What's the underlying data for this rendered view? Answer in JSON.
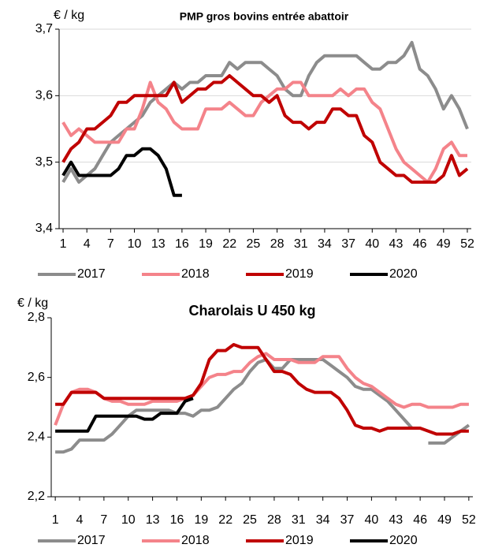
{
  "chart_data": [
    {
      "type": "line",
      "title": "PMP gros bovins entrée abattoir",
      "y_label": "€ / kg",
      "x": [
        1,
        2,
        3,
        4,
        5,
        6,
        7,
        8,
        9,
        10,
        11,
        12,
        13,
        14,
        15,
        16,
        17,
        18,
        19,
        20,
        21,
        22,
        23,
        24,
        25,
        26,
        27,
        28,
        29,
        30,
        31,
        32,
        33,
        34,
        35,
        36,
        37,
        38,
        39,
        40,
        41,
        42,
        43,
        44,
        45,
        46,
        47,
        48,
        49,
        50,
        51,
        52
      ],
      "xlim": [
        0.5,
        52.5
      ],
      "xticks": [
        1,
        4,
        7,
        10,
        13,
        16,
        19,
        22,
        25,
        28,
        31,
        34,
        37,
        40,
        43,
        46,
        49,
        52
      ],
      "ylim": [
        3.4,
        3.7
      ],
      "yticks": [
        {
          "value": 3.4,
          "label": "3,4"
        },
        {
          "value": 3.5,
          "label": "3,5"
        },
        {
          "value": 3.6,
          "label": "3,6"
        },
        {
          "value": 3.7,
          "label": "3,7"
        }
      ],
      "grid": true,
      "legend": "bottom",
      "series": [
        {
          "name": "2017",
          "color": "#8c8c8c",
          "values": [
            3.47,
            3.49,
            3.47,
            3.48,
            3.49,
            3.51,
            3.53,
            3.54,
            3.55,
            3.56,
            3.57,
            3.59,
            3.6,
            3.61,
            3.62,
            3.61,
            3.62,
            3.62,
            3.63,
            3.63,
            3.63,
            3.65,
            3.64,
            3.65,
            3.65,
            3.65,
            3.64,
            3.63,
            3.61,
            3.6,
            3.6,
            3.63,
            3.65,
            3.66,
            3.66,
            3.66,
            3.66,
            3.66,
            3.65,
            3.64,
            3.64,
            3.65,
            3.65,
            3.66,
            3.68,
            3.64,
            3.63,
            3.61,
            3.58,
            3.6,
            3.58,
            3.55
          ]
        },
        {
          "name": "2018",
          "color": "#f4838a",
          "values": [
            3.56,
            3.54,
            3.55,
            3.54,
            3.53,
            3.53,
            3.53,
            3.53,
            3.55,
            3.55,
            3.58,
            3.62,
            3.59,
            3.58,
            3.56,
            3.55,
            3.55,
            3.55,
            3.58,
            3.58,
            3.58,
            3.59,
            3.58,
            3.57,
            3.57,
            3.59,
            3.6,
            3.61,
            3.61,
            3.62,
            3.62,
            3.6,
            3.6,
            3.6,
            3.6,
            3.61,
            3.6,
            3.61,
            3.61,
            3.59,
            3.58,
            3.55,
            3.52,
            3.5,
            3.49,
            3.48,
            3.47,
            3.49,
            3.52,
            3.53,
            3.51,
            3.51
          ]
        },
        {
          "name": "2019",
          "color": "#c00000",
          "values": [
            3.5,
            3.52,
            3.53,
            3.55,
            3.55,
            3.56,
            3.57,
            3.59,
            3.59,
            3.6,
            3.6,
            3.6,
            3.6,
            3.6,
            3.62,
            3.59,
            3.6,
            3.61,
            3.61,
            3.62,
            3.62,
            3.63,
            3.62,
            3.61,
            3.6,
            3.6,
            3.59,
            3.6,
            3.57,
            3.56,
            3.56,
            3.55,
            3.56,
            3.56,
            3.58,
            3.58,
            3.57,
            3.57,
            3.54,
            3.53,
            3.5,
            3.49,
            3.48,
            3.48,
            3.47,
            3.47,
            3.47,
            3.47,
            3.48,
            3.51,
            3.48,
            3.49
          ]
        },
        {
          "name": "2020",
          "color": "#000000",
          "values": [
            3.48,
            3.5,
            3.48,
            3.48,
            3.48,
            3.48,
            3.48,
            3.49,
            3.51,
            3.51,
            3.52,
            3.52,
            3.51,
            3.49,
            3.45,
            3.45,
            null,
            null,
            null,
            null,
            null,
            null,
            null,
            null,
            null,
            null,
            null,
            null,
            null,
            null,
            null,
            null,
            null,
            null,
            null,
            null,
            null,
            null,
            null,
            null,
            null,
            null,
            null,
            null,
            null,
            null,
            null,
            null,
            null,
            null,
            null,
            null
          ]
        }
      ]
    },
    {
      "type": "line",
      "title": "Charolais U 450 kg",
      "y_label": "€ / kg",
      "x": [
        1,
        2,
        3,
        4,
        5,
        6,
        7,
        8,
        9,
        10,
        11,
        12,
        13,
        14,
        15,
        16,
        17,
        18,
        19,
        20,
        21,
        22,
        23,
        24,
        25,
        26,
        27,
        28,
        29,
        30,
        31,
        32,
        33,
        34,
        35,
        36,
        37,
        38,
        39,
        40,
        41,
        42,
        43,
        44,
        45,
        46,
        47,
        48,
        49,
        50,
        51,
        52
      ],
      "xlim": [
        0.5,
        52.5
      ],
      "xticks": [
        1,
        4,
        7,
        10,
        13,
        16,
        19,
        22,
        25,
        28,
        31,
        34,
        37,
        40,
        43,
        46,
        49,
        52
      ],
      "ylim": [
        2.2,
        2.8
      ],
      "yticks": [
        {
          "value": 2.2,
          "label": "2,2"
        },
        {
          "value": 2.4,
          "label": "2,4"
        },
        {
          "value": 2.6,
          "label": "2,6"
        },
        {
          "value": 2.8,
          "label": "2,8"
        }
      ],
      "grid": false,
      "legend": "bottom",
      "series": [
        {
          "name": "2017",
          "color": "#8c8c8c",
          "values": [
            2.35,
            2.35,
            2.36,
            2.39,
            2.39,
            2.39,
            2.39,
            2.41,
            2.44,
            2.47,
            2.49,
            2.49,
            2.49,
            2.49,
            2.49,
            2.48,
            2.48,
            2.47,
            2.49,
            2.49,
            2.5,
            2.53,
            2.56,
            2.58,
            2.62,
            2.65,
            2.66,
            2.63,
            2.63,
            2.66,
            2.66,
            2.66,
            2.66,
            2.66,
            2.64,
            2.62,
            2.6,
            2.57,
            2.56,
            2.56,
            2.54,
            2.52,
            2.49,
            2.46,
            2.43,
            null,
            2.38,
            2.38,
            2.38,
            2.4,
            2.42,
            2.44
          ]
        },
        {
          "name": "2018",
          "color": "#f4838a",
          "values": [
            2.44,
            2.51,
            2.55,
            2.56,
            2.56,
            2.55,
            2.53,
            2.52,
            2.52,
            2.51,
            2.51,
            2.51,
            2.52,
            2.52,
            2.52,
            2.52,
            2.53,
            2.54,
            2.57,
            2.6,
            2.61,
            2.61,
            2.62,
            2.62,
            2.65,
            2.67,
            2.68,
            2.66,
            2.66,
            2.66,
            2.65,
            2.65,
            2.65,
            2.67,
            2.67,
            2.67,
            2.63,
            2.6,
            2.58,
            2.57,
            2.55,
            2.53,
            2.51,
            2.5,
            2.51,
            2.51,
            2.5,
            2.5,
            2.5,
            2.5,
            2.51,
            2.51
          ]
        },
        {
          "name": "2019",
          "color": "#c00000",
          "values": [
            2.51,
            2.51,
            2.55,
            2.55,
            2.55,
            2.55,
            2.53,
            2.53,
            2.53,
            2.53,
            2.53,
            2.53,
            2.53,
            2.53,
            2.53,
            2.53,
            2.53,
            2.54,
            2.58,
            2.66,
            2.69,
            2.69,
            2.71,
            2.7,
            2.7,
            2.7,
            2.66,
            2.62,
            2.62,
            2.61,
            2.58,
            2.56,
            2.55,
            2.55,
            2.55,
            2.53,
            2.49,
            2.44,
            2.43,
            2.43,
            2.42,
            2.43,
            2.43,
            2.43,
            2.43,
            2.43,
            2.42,
            2.41,
            2.41,
            2.41,
            2.42,
            2.42
          ]
        },
        {
          "name": "2020",
          "color": "#000000",
          "values": [
            2.42,
            2.42,
            2.42,
            2.42,
            2.42,
            2.47,
            2.47,
            2.47,
            2.47,
            2.47,
            2.47,
            2.46,
            2.46,
            2.48,
            2.48,
            2.48,
            2.52,
            2.53,
            null,
            null,
            null,
            null,
            null,
            null,
            null,
            null,
            null,
            null,
            null,
            null,
            null,
            null,
            null,
            null,
            null,
            null,
            null,
            null,
            null,
            null,
            null,
            null,
            null,
            null,
            null,
            null,
            null,
            null,
            null,
            null,
            null,
            null
          ]
        }
      ]
    }
  ]
}
